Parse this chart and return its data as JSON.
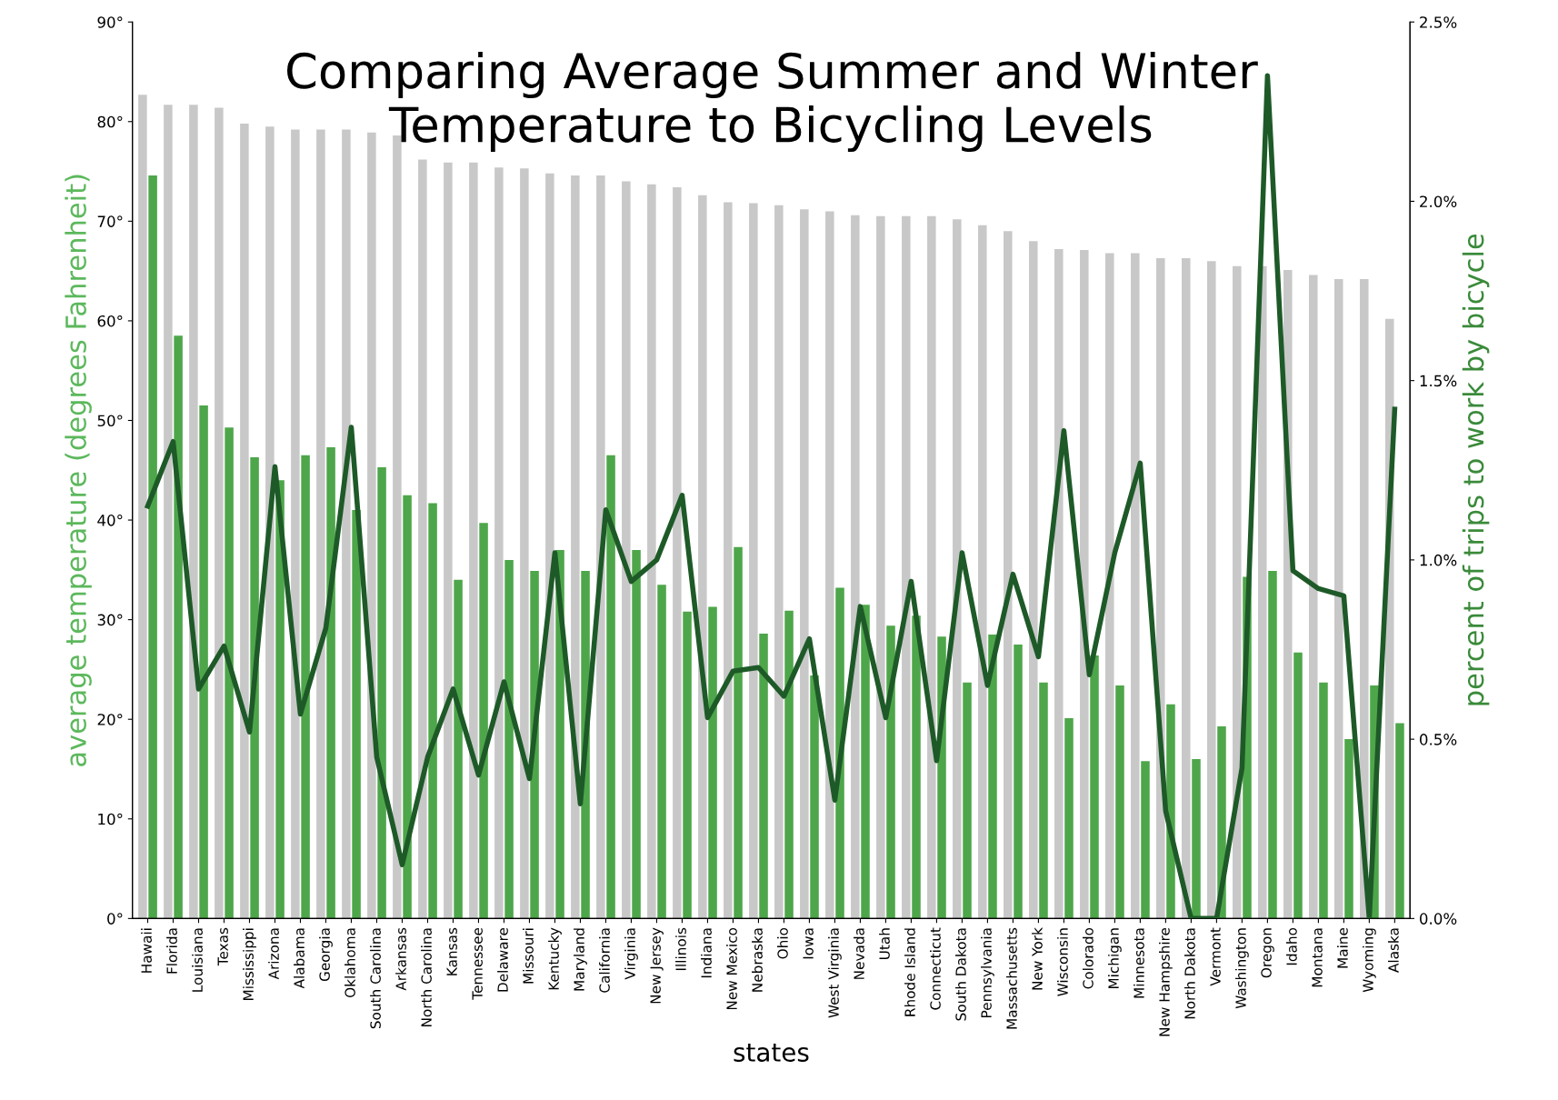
{
  "chart_data": {
    "type": "bar",
    "title": "Comparing Average Summer and Winter\nTemperature to Bicycling Levels",
    "xlabel": "states",
    "ylabel": "average temperature (degrees Fahrenheit)",
    "y2label": "percent of trips to work by bicycle",
    "categories": [
      "Hawaii",
      "Florida",
      "Louisiana",
      "Texas",
      "Mississippi",
      "Arizona",
      "Alabama",
      "Georgia",
      "Oklahoma",
      "South Carolina",
      "Arkansas",
      "North Carolina",
      "Kansas",
      "Tennessee",
      "Delaware",
      "Missouri",
      "Kentucky",
      "Maryland",
      "California",
      "Virginia",
      "New Jersey",
      "Illinois",
      "Indiana",
      "New Mexico",
      "Nebraska",
      "Ohio",
      "Iowa",
      "West Virginia",
      "Nevada",
      "Utah",
      "Rhode Island",
      "Connecticut",
      "South Dakota",
      "Pennsylvania",
      "Massachusetts",
      "New York",
      "Wisconsin",
      "Colorado",
      "Michigan",
      "Minnesota",
      "New Hampshire",
      "North Dakota",
      "Vermont",
      "Washington",
      "Oregon",
      "Idaho",
      "Montana",
      "Maine",
      "Wyoming",
      "Alaska"
    ],
    "series": [
      {
        "color": "#c8c8c8",
        "values": [
          82.7,
          81.7,
          81.7,
          81.4,
          79.8,
          79.5,
          79.2,
          79.2,
          79.2,
          78.9,
          78.6,
          76.2,
          75.9,
          75.9,
          75.4,
          75.3,
          74.8,
          74.6,
          74.6,
          74.0,
          73.7,
          73.4,
          72.6,
          71.9,
          71.8,
          71.6,
          71.2,
          71.0,
          70.6,
          70.5,
          70.5,
          70.5,
          70.2,
          69.6,
          69.0,
          68.0,
          67.2,
          67.1,
          66.8,
          66.8,
          66.3,
          66.3,
          66.0,
          65.5,
          65.5,
          65.1,
          64.6,
          64.2,
          64.2,
          60.2
        ]
      },
      {
        "color": "#4ea64a",
        "values": [
          74.6,
          58.5,
          51.5,
          49.3,
          46.3,
          44.0,
          46.5,
          47.3,
          41.0,
          45.3,
          42.5,
          41.7,
          34.0,
          39.7,
          36.0,
          34.9,
          37.0,
          34.9,
          46.5,
          37.0,
          33.5,
          30.8,
          31.3,
          37.3,
          28.6,
          30.9,
          24.4,
          33.2,
          31.5,
          29.4,
          30.4,
          28.3,
          23.7,
          28.5,
          27.5,
          23.7,
          20.1,
          26.4,
          23.4,
          15.8,
          21.5,
          16.0,
          19.3,
          34.3,
          34.9,
          26.7,
          23.7,
          18.0,
          23.4,
          19.6
        ]
      },
      {
        "type": "line",
        "axis": "y2",
        "color": "#1e5a28",
        "values": [
          1.15,
          1.33,
          0.64,
          0.76,
          0.52,
          1.26,
          0.57,
          0.81,
          1.37,
          0.45,
          0.15,
          0.45,
          0.64,
          0.4,
          0.66,
          0.39,
          1.02,
          0.32,
          1.14,
          0.94,
          1.0,
          1.18,
          0.56,
          0.69,
          0.7,
          0.62,
          0.78,
          0.33,
          0.87,
          0.56,
          0.94,
          0.44,
          1.02,
          0.65,
          0.96,
          0.73,
          1.36,
          0.68,
          1.02,
          1.27,
          0.3,
          0.0,
          0.0,
          0.42,
          2.35,
          0.97,
          0.92,
          0.9,
          0.0,
          1.42
        ]
      }
    ],
    "ylim": [
      0,
      90
    ],
    "yticks": [
      {
        "value": 0,
        "label": "0°"
      },
      {
        "value": 10,
        "label": "10°"
      },
      {
        "value": 20,
        "label": "20°"
      },
      {
        "value": 30,
        "label": "30°"
      },
      {
        "value": 40,
        "label": "40°"
      },
      {
        "value": 50,
        "label": "50°"
      },
      {
        "value": 60,
        "label": "60°"
      },
      {
        "value": 70,
        "label": "70°"
      },
      {
        "value": 80,
        "label": "80°"
      },
      {
        "value": 90,
        "label": "90°"
      }
    ],
    "y2lim": [
      0,
      2.5
    ],
    "y2ticks": [
      {
        "value": 0,
        "label": "0.0%"
      },
      {
        "value": 0.5,
        "label": "0.5%"
      },
      {
        "value": 1.0,
        "label": "1.0%"
      },
      {
        "value": 1.5,
        "label": "1.5%"
      },
      {
        "value": 2.0,
        "label": "2.0%"
      },
      {
        "value": 2.5,
        "label": "2.5%"
      }
    ],
    "grid": false,
    "legend": false
  }
}
